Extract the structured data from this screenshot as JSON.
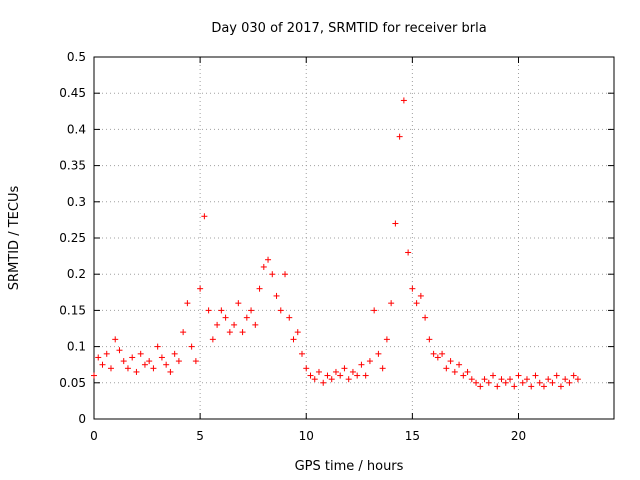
{
  "chart_data": {
    "type": "scatter",
    "title": "Day 030 of 2017, SRMTID for receiver brla",
    "xlabel": "GPS time / hours",
    "ylabel": "SRMTID / TECUs",
    "xlim": [
      0,
      24.5
    ],
    "ylim": [
      0,
      0.5
    ],
    "x_ticks": [
      0,
      5,
      10,
      15,
      20
    ],
    "x_tick_labels": [
      "0",
      "5",
      "10",
      "15",
      "20"
    ],
    "y_ticks": [
      0,
      0.05,
      0.1,
      0.15,
      0.2,
      0.25,
      0.3,
      0.35,
      0.4,
      0.45,
      0.5
    ],
    "y_tick_labels": [
      "0",
      "0.05",
      "0.1",
      "0.15",
      "0.2",
      "0.25",
      "0.3",
      "0.35",
      "0.4",
      "0.45",
      "0.5"
    ],
    "grid": true,
    "marker": "+",
    "color": "#ff0000",
    "series": [
      {
        "name": "SRMTID",
        "x": [
          0.0,
          0.2,
          0.4,
          0.6,
          0.8,
          1.0,
          1.2,
          1.4,
          1.6,
          1.8,
          2.0,
          2.2,
          2.4,
          2.6,
          2.8,
          3.0,
          3.2,
          3.4,
          3.6,
          3.8,
          4.0,
          4.2,
          4.4,
          4.6,
          4.8,
          5.0,
          5.2,
          5.4,
          5.6,
          5.8,
          6.0,
          6.2,
          6.4,
          6.6,
          6.8,
          7.0,
          7.2,
          7.4,
          7.6,
          7.8,
          8.0,
          8.2,
          8.4,
          8.6,
          8.8,
          9.0,
          9.2,
          9.4,
          9.6,
          9.8,
          10.0,
          10.2,
          10.4,
          10.6,
          10.8,
          11.0,
          11.2,
          11.4,
          11.6,
          11.8,
          12.0,
          12.2,
          12.4,
          12.6,
          12.8,
          13.0,
          13.2,
          13.4,
          13.6,
          13.8,
          14.0,
          14.2,
          14.4,
          14.6,
          14.8,
          15.0,
          15.2,
          15.4,
          15.6,
          15.8,
          16.0,
          16.2,
          16.4,
          16.6,
          16.8,
          17.0,
          17.2,
          17.4,
          17.6,
          17.8,
          18.0,
          18.2,
          18.4,
          18.6,
          18.8,
          19.0,
          19.2,
          19.4,
          19.6,
          19.8,
          20.0,
          20.2,
          20.4,
          20.6,
          20.8,
          21.0,
          21.2,
          21.4,
          21.6,
          21.8,
          22.0,
          22.2,
          22.4,
          22.6,
          22.8
        ],
        "y": [
          0.06,
          0.085,
          0.075,
          0.09,
          0.07,
          0.11,
          0.095,
          0.08,
          0.07,
          0.085,
          0.065,
          0.09,
          0.075,
          0.08,
          0.07,
          0.1,
          0.085,
          0.075,
          0.065,
          0.09,
          0.08,
          0.12,
          0.16,
          0.1,
          0.08,
          0.18,
          0.28,
          0.15,
          0.11,
          0.13,
          0.15,
          0.14,
          0.12,
          0.13,
          0.16,
          0.12,
          0.14,
          0.15,
          0.13,
          0.18,
          0.21,
          0.22,
          0.2,
          0.17,
          0.15,
          0.2,
          0.14,
          0.11,
          0.12,
          0.09,
          0.07,
          0.06,
          0.055,
          0.065,
          0.05,
          0.06,
          0.055,
          0.065,
          0.06,
          0.07,
          0.055,
          0.065,
          0.06,
          0.075,
          0.06,
          0.08,
          0.15,
          0.09,
          0.07,
          0.11,
          0.16,
          0.27,
          0.39,
          0.44,
          0.23,
          0.18,
          0.16,
          0.17,
          0.14,
          0.11,
          0.09,
          0.085,
          0.09,
          0.07,
          0.08,
          0.065,
          0.075,
          0.06,
          0.065,
          0.055,
          0.05,
          0.045,
          0.055,
          0.05,
          0.06,
          0.045,
          0.055,
          0.05,
          0.055,
          0.045,
          0.06,
          0.05,
          0.055,
          0.045,
          0.06,
          0.05,
          0.045,
          0.055,
          0.05,
          0.06,
          0.045,
          0.055,
          0.05,
          0.06,
          0.055
        ]
      }
    ]
  }
}
